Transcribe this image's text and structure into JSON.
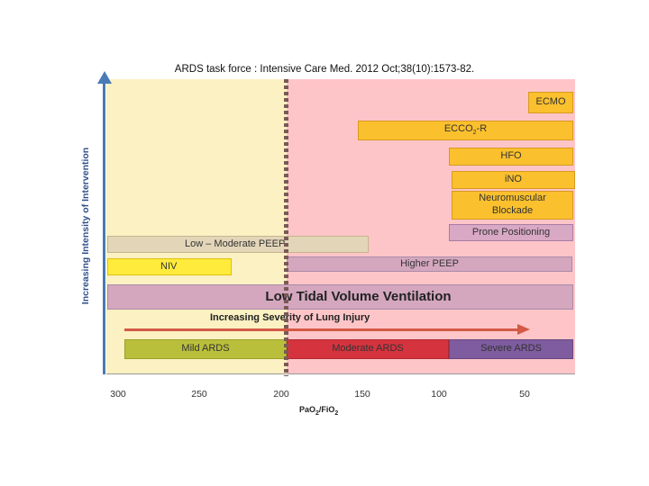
{
  "caption": "ARDS task force : Intensive Care Med. 2012 Oct;38(10):1573-82.",
  "y_axis_label": "Increasing Intensity of Intervention",
  "interventions": {
    "ecmo": "ECMO",
    "ecco2r_main": "ECCO",
    "ecco2r_sub": "2",
    "ecco2r_suffix": "R",
    "hfo": "HFO",
    "ino": "iNO",
    "nmb_line1": "Neuromuscular",
    "nmb_line2": "Blockade",
    "prone": "Prone Positioning",
    "low_mod_peep": "Low – Moderate PEEP",
    "niv": "NIV",
    "higher_peep": "Higher PEEP",
    "ltvv": "Low Tidal Volume Ventilation"
  },
  "severity": {
    "arrow_label": "Increasing Severity of Lung Injury",
    "mild": "Mild ARDS",
    "moderate": "Moderate ARDS",
    "severe": "Severe ARDS"
  },
  "x_axis": {
    "ticks": [
      "300",
      "250",
      "200",
      "150",
      "100",
      "50"
    ],
    "label_pa": "PaO",
    "label_pa_sub": "2",
    "label_fi": "/FiO",
    "label_fi_sub": "2"
  },
  "colors": {
    "mild_zone": "#fbf1c2",
    "moderate_severe_zone": "#fec5c8",
    "mild": "#b9bf3b",
    "moderate": "#d5333e",
    "severe": "#7e5c9f",
    "axis": "#4a7ab7",
    "severity_arrow": "#d35a46"
  }
}
